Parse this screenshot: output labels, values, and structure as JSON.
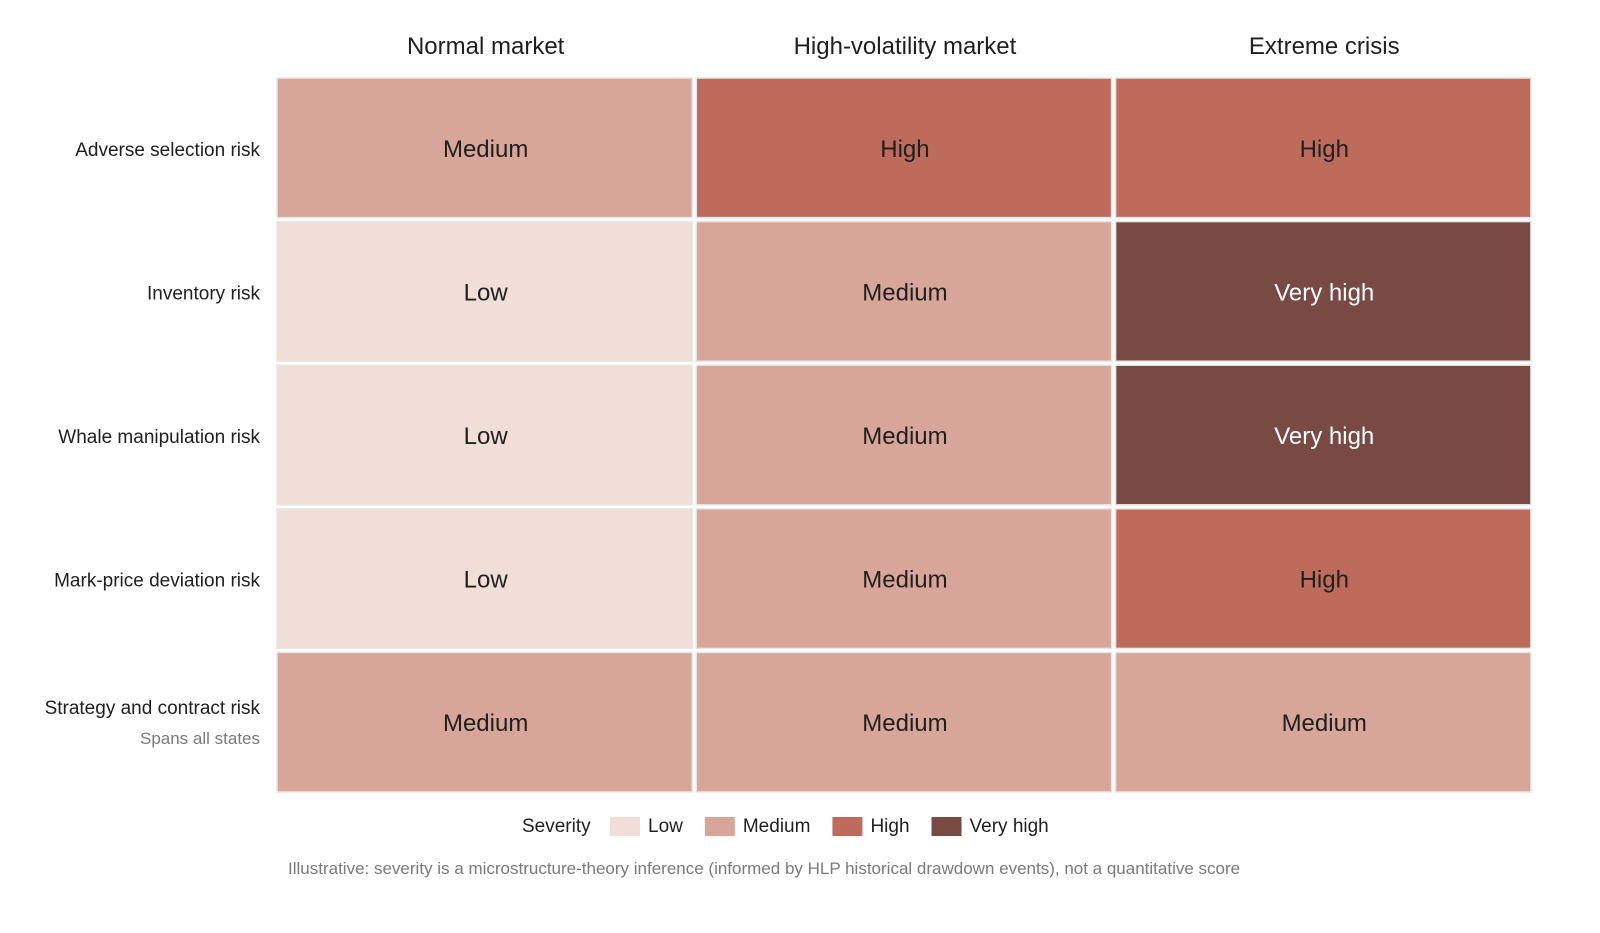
{
  "chart_data": {
    "type": "heatmap",
    "columns": [
      "Normal market",
      "High-volatility market",
      "Extreme crisis"
    ],
    "rows": [
      {
        "label": "Adverse selection risk",
        "sublabel": "",
        "values": [
          "Medium",
          "High",
          "High"
        ]
      },
      {
        "label": "Inventory risk",
        "sublabel": "",
        "values": [
          "Low",
          "Medium",
          "Very high"
        ]
      },
      {
        "label": "Whale manipulation risk",
        "sublabel": "",
        "values": [
          "Low",
          "Medium",
          "Very high"
        ]
      },
      {
        "label": "Mark-price deviation risk",
        "sublabel": "",
        "values": [
          "Low",
          "Medium",
          "High"
        ]
      },
      {
        "label": "Strategy and contract risk",
        "sublabel": "Spans all states",
        "values": [
          "Medium",
          "Medium",
          "Medium"
        ]
      }
    ],
    "legend": {
      "title": "Severity",
      "levels": [
        {
          "label": "Low",
          "color": "#f2ded8",
          "text_color": "#1f1f1f"
        },
        {
          "label": "Medium",
          "color": "#d7a698",
          "text_color": "#1f1f1f"
        },
        {
          "label": "High",
          "color": "#bd6c5b",
          "text_color": "#1f1f1f"
        },
        {
          "label": "Very high",
          "color": "#784a43",
          "text_color": "#ffffff"
        }
      ]
    },
    "footnote": "Illustrative: severity is a microstructure-theory inference (informed by HLP historical drawdown events), not a quantitative score"
  }
}
